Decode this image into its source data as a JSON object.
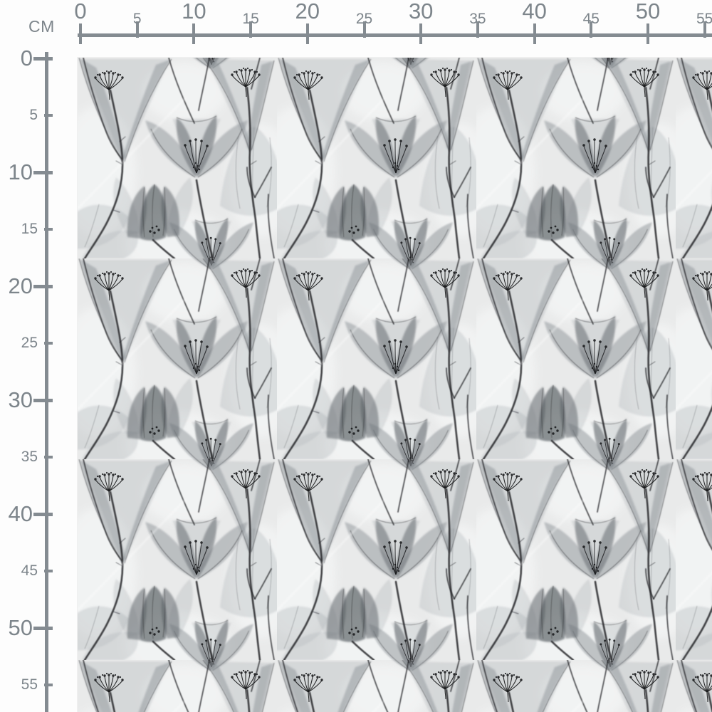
{
  "unit_label": "CM",
  "rulers": {
    "horizontal": {
      "tick_values": [
        0,
        5,
        10,
        15,
        20,
        25,
        30,
        35,
        40,
        45,
        50,
        55
      ]
    },
    "vertical": {
      "tick_values": [
        0,
        5,
        10,
        15,
        20,
        25,
        30,
        35,
        40,
        45,
        50,
        55
      ]
    }
  },
  "swatch": {
    "content": "xray-floral-pattern"
  },
  "colors": {
    "ruler": "#848b91",
    "ruler_text": "#7d858b",
    "page_bg": "#fdfdfd",
    "pattern_bg": "#e9eaea",
    "ink": "#26282b",
    "ink_dark": "#17181a",
    "petal_light": "#b4b9bd",
    "petal_mid": "#8d9398",
    "petal_dark": "#6a7075",
    "petal_darker": "#555b60",
    "wash": "#f8f9f9",
    "streak": "#ffffff"
  }
}
